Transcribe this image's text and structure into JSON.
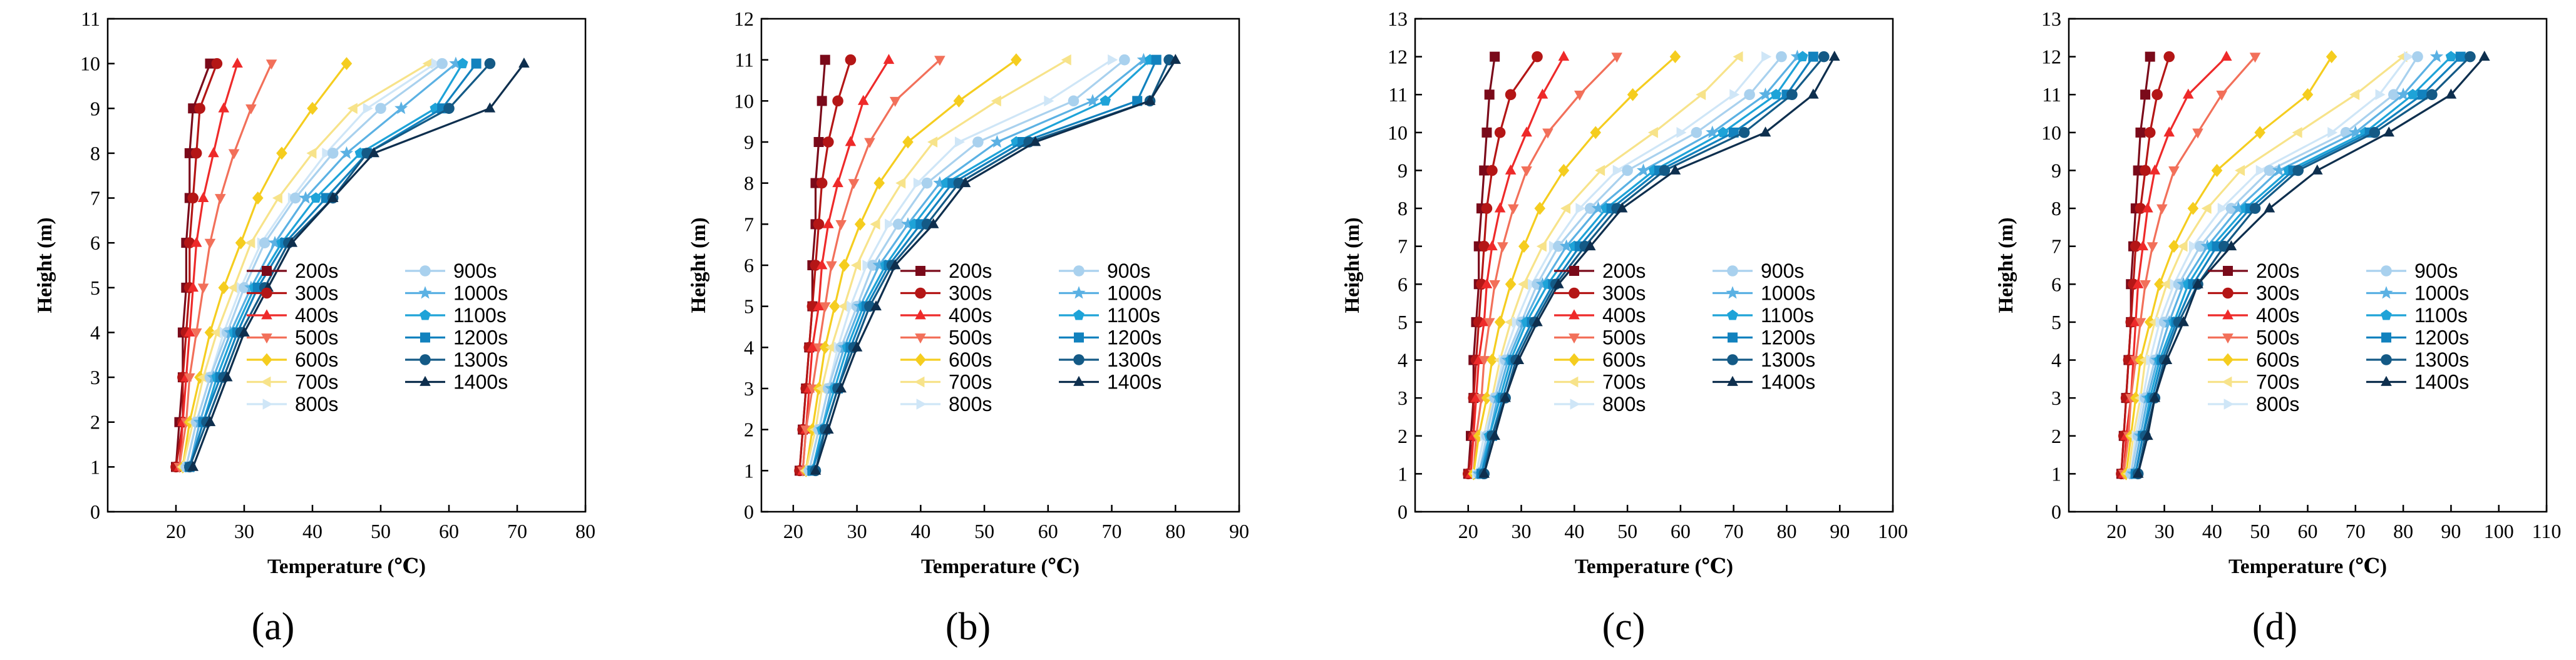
{
  "series_styles": [
    {
      "name": "200s",
      "color": "#7a0a1a",
      "marker": "square"
    },
    {
      "name": "300s",
      "color": "#b41616",
      "marker": "circle"
    },
    {
      "name": "400s",
      "color": "#ee2a2a",
      "marker": "triangle-up"
    },
    {
      "name": "500s",
      "color": "#f2705a",
      "marker": "triangle-down"
    },
    {
      "name": "600s",
      "color": "#f5cd1f",
      "marker": "diamond"
    },
    {
      "name": "700s",
      "color": "#f7e38a",
      "marker": "triangle-left"
    },
    {
      "name": "800s",
      "color": "#cfe6f7",
      "marker": "triangle-right"
    },
    {
      "name": "900s",
      "color": "#a9d1ee",
      "marker": "circle"
    },
    {
      "name": "1000s",
      "color": "#5bb1e3",
      "marker": "star"
    },
    {
      "name": "1100s",
      "color": "#1ea3d8",
      "marker": "pentagon"
    },
    {
      "name": "1200s",
      "color": "#1282be",
      "marker": "square"
    },
    {
      "name": "1300s",
      "color": "#145a86",
      "marker": "circle"
    },
    {
      "name": "1400s",
      "color": "#0e2f4e",
      "marker": "triangle-up"
    }
  ],
  "chart_data": [
    {
      "type": "line",
      "panel_label": "(a)",
      "xlabel": "Temperature (℃)",
      "ylabel": "Height (m)",
      "xlim": [
        10,
        80
      ],
      "ylim": [
        0,
        11
      ],
      "xticks": [
        20,
        30,
        40,
        50,
        60,
        70,
        80
      ],
      "yticks": [
        0,
        1,
        2,
        3,
        4,
        5,
        6,
        7,
        8,
        9,
        10,
        11
      ],
      "heights": [
        1,
        2,
        3,
        4,
        5,
        6,
        7,
        8,
        9,
        10
      ],
      "series": [
        {
          "name": "200s",
          "values": [
            20,
            20.5,
            21,
            21,
            21.5,
            21.5,
            22,
            22,
            22.5,
            25
          ]
        },
        {
          "name": "300s",
          "values": [
            20,
            21,
            21,
            21.5,
            22,
            22,
            22.5,
            23,
            23.5,
            26
          ]
        },
        {
          "name": "400s",
          "values": [
            20.5,
            21,
            21.5,
            22,
            22.5,
            23,
            24,
            25.5,
            27,
            29
          ]
        },
        {
          "name": "500s",
          "values": [
            20.5,
            21.5,
            22,
            23,
            24,
            25,
            26.5,
            28.5,
            31,
            34
          ]
        },
        {
          "name": "600s",
          "values": [
            21,
            22,
            23.5,
            25,
            27,
            29.5,
            32,
            35.5,
            40,
            45
          ]
        },
        {
          "name": "700s",
          "values": [
            21,
            22.5,
            24,
            26,
            28.5,
            31,
            35,
            40,
            46,
            57
          ]
        },
        {
          "name": "800s",
          "values": [
            21.5,
            23,
            25,
            27,
            29.5,
            32.5,
            37,
            42,
            48,
            58
          ]
        },
        {
          "name": "900s",
          "values": [
            21.5,
            23,
            25,
            27.5,
            30,
            33,
            37.5,
            43,
            50,
            59
          ]
        },
        {
          "name": "1000s",
          "values": [
            22,
            23.5,
            25.5,
            28,
            31,
            34.5,
            39,
            45,
            53,
            61
          ]
        },
        {
          "name": "1100s",
          "values": [
            22,
            24,
            26,
            28.5,
            31.5,
            35.5,
            40.5,
            47,
            58,
            62
          ]
        },
        {
          "name": "1200s",
          "values": [
            22,
            24,
            26.5,
            29,
            32,
            36,
            42,
            48,
            59,
            64
          ]
        },
        {
          "name": "1300s",
          "values": [
            22,
            24.5,
            27,
            29.5,
            33,
            36.5,
            43,
            48,
            60,
            66
          ]
        },
        {
          "name": "1400s",
          "values": [
            22.5,
            25,
            27.5,
            30,
            33.5,
            37,
            43,
            49,
            66,
            71
          ]
        }
      ]
    },
    {
      "type": "line",
      "panel_label": "(b)",
      "xlabel": "Temperature (℃)",
      "ylabel": "Height (m)",
      "xlim": [
        15,
        90
      ],
      "ylim": [
        0,
        12
      ],
      "xticks": [
        20,
        30,
        40,
        50,
        60,
        70,
        80,
        90
      ],
      "yticks": [
        0,
        1,
        2,
        3,
        4,
        5,
        6,
        7,
        8,
        9,
        10,
        11,
        12
      ],
      "heights": [
        1,
        2,
        3,
        4,
        5,
        6,
        7,
        8,
        9,
        10,
        11
      ],
      "series": [
        {
          "name": "200s",
          "values": [
            21,
            21.5,
            22,
            22.5,
            23,
            23,
            23.5,
            23.5,
            24,
            24.5,
            25
          ]
        },
        {
          "name": "300s",
          "values": [
            21,
            21.5,
            22,
            22.5,
            23,
            23.5,
            24,
            24.5,
            25.5,
            27,
            29
          ]
        },
        {
          "name": "400s",
          "values": [
            21.5,
            22,
            22.5,
            23,
            24,
            24.5,
            25.5,
            27,
            29,
            31,
            35
          ]
        },
        {
          "name": "500s",
          "values": [
            21.5,
            22,
            23,
            24,
            25,
            26,
            27.5,
            29.5,
            32,
            36,
            43
          ]
        },
        {
          "name": "600s",
          "values": [
            22,
            23,
            24,
            25,
            26.5,
            28,
            30.5,
            33.5,
            38,
            46,
            55
          ]
        },
        {
          "name": "700s",
          "values": [
            22,
            23.5,
            24.5,
            26,
            28,
            30,
            33,
            37,
            42,
            52,
            63
          ]
        },
        {
          "name": "800s",
          "values": [
            22.5,
            24,
            25.5,
            27,
            29,
            31.5,
            35,
            39.5,
            46,
            60,
            70
          ]
        },
        {
          "name": "900s",
          "values": [
            22.5,
            24,
            25.5,
            27.5,
            30,
            32.5,
            36.5,
            41,
            49,
            64,
            72
          ]
        },
        {
          "name": "1000s",
          "values": [
            23,
            24.5,
            26,
            28,
            30.5,
            33.5,
            38,
            43,
            52,
            67,
            75
          ]
        },
        {
          "name": "1100s",
          "values": [
            23,
            24.5,
            26.5,
            28.5,
            31,
            34.5,
            39,
            44,
            55,
            69,
            76
          ]
        },
        {
          "name": "1200s",
          "values": [
            23,
            25,
            27,
            29,
            31.5,
            35,
            40,
            45,
            56,
            74,
            77
          ]
        },
        {
          "name": "1300s",
          "values": [
            23.5,
            25,
            27,
            29.5,
            32,
            35.5,
            41,
            46,
            57,
            76,
            79
          ]
        },
        {
          "name": "1400s",
          "values": [
            23.5,
            25.5,
            27.5,
            30,
            33,
            36,
            42,
            47,
            58,
            76,
            80
          ]
        }
      ]
    },
    {
      "type": "line",
      "panel_label": "(c)",
      "xlabel": "Temperature (℃)",
      "ylabel": "Height (m)",
      "xlim": [
        10,
        100
      ],
      "ylim": [
        0,
        13
      ],
      "xticks": [
        20,
        30,
        40,
        50,
        60,
        70,
        80,
        90,
        100
      ],
      "yticks": [
        0,
        1,
        2,
        3,
        4,
        5,
        6,
        7,
        8,
        9,
        10,
        11,
        12,
        13
      ],
      "heights": [
        1,
        2,
        3,
        4,
        5,
        6,
        7,
        8,
        9,
        10,
        11,
        12
      ],
      "series": [
        {
          "name": "200s",
          "values": [
            20,
            20.5,
            21,
            21,
            21.5,
            22,
            22,
            22.5,
            23,
            23.5,
            24,
            25
          ]
        },
        {
          "name": "300s",
          "values": [
            20,
            21,
            21,
            21.5,
            22,
            22.5,
            23,
            23.5,
            24.5,
            26,
            28,
            33
          ]
        },
        {
          "name": "400s",
          "values": [
            20.5,
            21,
            21.5,
            22,
            23,
            23.5,
            24.5,
            26,
            28,
            31,
            34,
            38
          ]
        },
        {
          "name": "500s",
          "values": [
            21,
            21.5,
            22.5,
            23,
            24,
            25,
            26.5,
            28.5,
            31,
            35,
            41,
            48
          ]
        },
        {
          "name": "600s",
          "values": [
            21,
            22,
            23.5,
            24.5,
            26,
            28,
            30.5,
            33.5,
            38,
            44,
            51,
            59
          ]
        },
        {
          "name": "700s",
          "values": [
            21.5,
            23,
            24.5,
            26,
            28,
            30.5,
            34,
            38.5,
            45,
            55,
            64,
            71
          ]
        },
        {
          "name": "800s",
          "values": [
            21.5,
            23,
            25,
            26.5,
            29,
            32,
            36,
            41,
            48,
            60,
            70,
            76
          ]
        },
        {
          "name": "900s",
          "values": [
            22,
            23.5,
            25,
            27,
            30,
            33,
            37,
            43,
            50,
            63,
            73,
            79
          ]
        },
        {
          "name": "1000s",
          "values": [
            22,
            24,
            25.5,
            27.5,
            30.5,
            34,
            38.5,
            44.5,
            53,
            66,
            76,
            82
          ]
        },
        {
          "name": "1100s",
          "values": [
            22.5,
            24,
            26,
            28,
            31,
            35,
            40,
            46,
            55,
            68,
            78,
            83
          ]
        },
        {
          "name": "1200s",
          "values": [
            22.5,
            24.5,
            26.5,
            28.5,
            32,
            36,
            41,
            47,
            56,
            70,
            80,
            85
          ]
        },
        {
          "name": "1300s",
          "values": [
            23,
            24.5,
            27,
            29,
            32.5,
            36.5,
            42,
            48,
            57,
            72,
            81,
            87
          ]
        },
        {
          "name": "1400s",
          "values": [
            23,
            25,
            27,
            29.5,
            33,
            37,
            43,
            49,
            59,
            76,
            85,
            89
          ]
        }
      ]
    },
    {
      "type": "line",
      "panel_label": "(d)",
      "xlabel": "Temperature (℃)",
      "ylabel": "Height (m)",
      "xlim": [
        10,
        110
      ],
      "ylim": [
        0,
        13
      ],
      "xticks": [
        20,
        30,
        40,
        50,
        60,
        70,
        80,
        90,
        100,
        110
      ],
      "yticks": [
        0,
        1,
        2,
        3,
        4,
        5,
        6,
        7,
        8,
        9,
        10,
        11,
        12,
        13
      ],
      "heights": [
        1,
        2,
        3,
        4,
        5,
        6,
        7,
        8,
        9,
        10,
        11,
        12
      ],
      "series": [
        {
          "name": "200s",
          "values": [
            21,
            21.5,
            22,
            22.5,
            23,
            23,
            23.5,
            24,
            24.5,
            25,
            26,
            27
          ]
        },
        {
          "name": "300s",
          "values": [
            21,
            21.5,
            22,
            22.5,
            23,
            23.5,
            24,
            25,
            26,
            27,
            28.5,
            31
          ]
        },
        {
          "name": "400s",
          "values": [
            21.5,
            22,
            23,
            23.5,
            24,
            24.5,
            25.5,
            26.5,
            28,
            31,
            35,
            43
          ]
        },
        {
          "name": "500s",
          "values": [
            21.5,
            22.5,
            23,
            24,
            25,
            26,
            27.5,
            29.5,
            32,
            37,
            42,
            49
          ]
        },
        {
          "name": "600s",
          "values": [
            22,
            23,
            24,
            25,
            27,
            29,
            32,
            36,
            41,
            50,
            60,
            65
          ]
        },
        {
          "name": "700s",
          "values": [
            22.5,
            23.5,
            25,
            26,
            28,
            30.5,
            34,
            39,
            46,
            58,
            70,
            80
          ]
        },
        {
          "name": "800s",
          "values": [
            23,
            24,
            25.5,
            27,
            29,
            32,
            36,
            42,
            50,
            65,
            75,
            81
          ]
        },
        {
          "name": "900s",
          "values": [
            23,
            24.5,
            26,
            28,
            30,
            33,
            37.5,
            44,
            52,
            68,
            78,
            83
          ]
        },
        {
          "name": "1000s",
          "values": [
            23.5,
            25,
            26.5,
            28.5,
            31,
            34,
            39,
            45.5,
            54,
            70,
            80,
            87
          ]
        },
        {
          "name": "1100s",
          "values": [
            24,
            25.5,
            27,
            29,
            32,
            35,
            40,
            47,
            56,
            72,
            82,
            90
          ]
        },
        {
          "name": "1200s",
          "values": [
            24,
            25.5,
            27.5,
            29.5,
            32.5,
            36,
            41,
            48,
            57,
            73,
            84,
            92
          ]
        },
        {
          "name": "1300s",
          "values": [
            24.5,
            26,
            28,
            30,
            33,
            37,
            42.5,
            49,
            58,
            74,
            86,
            94
          ]
        },
        {
          "name": "1400s",
          "values": [
            24.5,
            26.5,
            28,
            30.5,
            34,
            37,
            44,
            52,
            62,
            77,
            90,
            97
          ]
        }
      ]
    }
  ]
}
